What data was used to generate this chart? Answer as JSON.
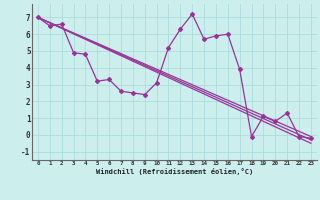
{
  "xlabel": "Windchill (Refroidissement éolien,°C)",
  "background_color": "#cceeed",
  "grid_color": "#aadddd",
  "line_color": "#993399",
  "xlim": [
    -0.5,
    23.5
  ],
  "ylim": [
    -1.5,
    7.8
  ],
  "yticks": [
    -1,
    0,
    1,
    2,
    3,
    4,
    5,
    6,
    7
  ],
  "xticks": [
    0,
    1,
    2,
    3,
    4,
    5,
    6,
    7,
    8,
    9,
    10,
    11,
    12,
    13,
    14,
    15,
    16,
    17,
    18,
    19,
    20,
    21,
    22,
    23
  ],
  "series1_x": [
    0,
    1,
    2,
    3,
    4,
    5,
    6,
    7,
    8,
    9,
    10,
    11,
    12,
    13,
    14,
    15,
    16,
    17,
    18,
    19,
    20,
    21,
    22,
    23
  ],
  "series1_y": [
    7.0,
    6.5,
    6.6,
    4.9,
    4.8,
    3.2,
    3.3,
    2.6,
    2.5,
    2.4,
    3.1,
    5.2,
    6.3,
    7.2,
    5.7,
    5.9,
    6.0,
    3.9,
    -0.1,
    1.1,
    0.8,
    1.3,
    -0.1,
    -0.2
  ],
  "line1_x": [
    0,
    23
  ],
  "line1_y": [
    7.0,
    -0.3
  ],
  "line2_x": [
    0,
    23
  ],
  "line2_y": [
    7.0,
    -0.5
  ],
  "line3_x": [
    0,
    23
  ],
  "line3_y": [
    7.0,
    -0.1
  ]
}
